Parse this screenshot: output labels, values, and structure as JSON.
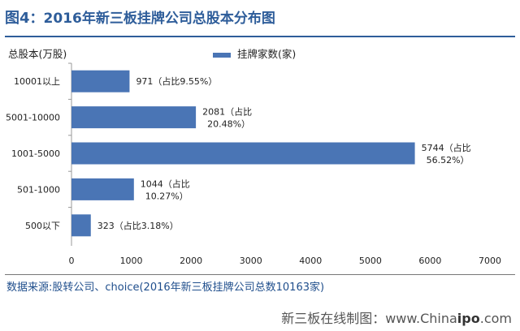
{
  "figure": {
    "label": "图4",
    "title": "：2016年新三板挂牌公司总股本分布图"
  },
  "unit_label": "总股本(万股)",
  "source": "数据来源:股转公司、choice(2016年新三板挂牌公司总数10163家)",
  "footer": {
    "prefix": "新三板在线制图：www.China",
    "brand": "ipo",
    "suffix": ".com"
  },
  "colors": {
    "bar": "#4a75b5",
    "accent": "#2e5d9a"
  },
  "chart_data": {
    "type": "bar",
    "orientation": "horizontal",
    "categories": [
      "10001以上",
      "5001-10000",
      "1001-5000",
      "501-1000",
      "500以下"
    ],
    "series": [
      {
        "name": "挂牌家数(家)",
        "values": [
          971,
          2081,
          5744,
          1044,
          323
        ]
      }
    ],
    "data_labels": [
      [
        "971（占比9.55%）"
      ],
      [
        "2081（占比",
        "20.48%）"
      ],
      [
        "5744（占比",
        "56.52%）"
      ],
      [
        "1044（占比",
        "10.27%）"
      ],
      [
        "323（占比3.18%）"
      ]
    ],
    "xticks": [
      0,
      1000,
      2000,
      3000,
      4000,
      5000,
      6000,
      7000
    ],
    "xlim": [
      0,
      7000
    ],
    "grid": false,
    "legend_position": "top"
  }
}
